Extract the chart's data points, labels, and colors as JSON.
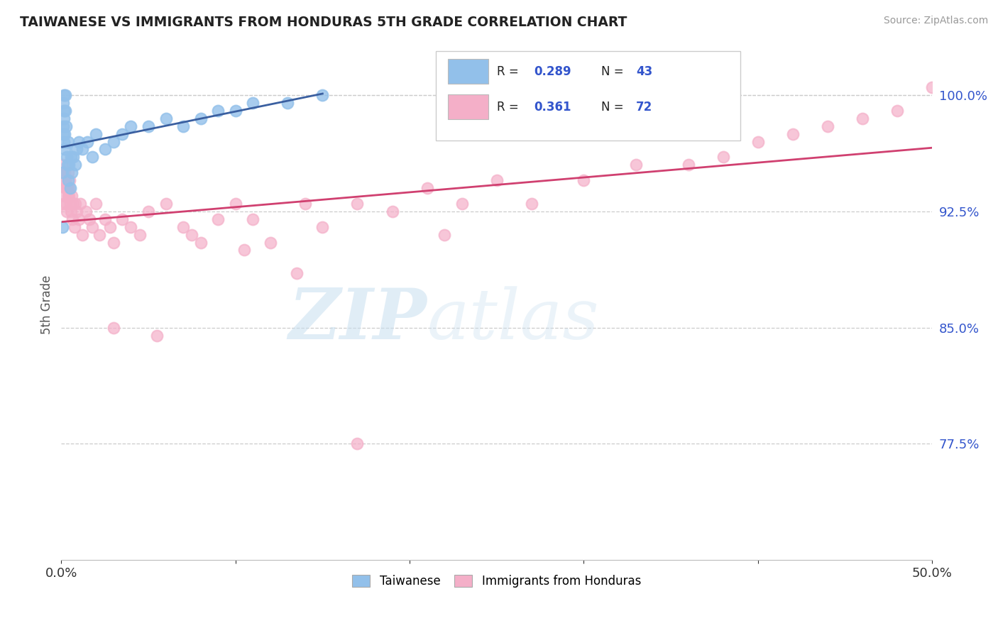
{
  "title": "TAIWANESE VS IMMIGRANTS FROM HONDURAS 5TH GRADE CORRELATION CHART",
  "source_text": "Source: ZipAtlas.com",
  "ylabel": "5th Grade",
  "xlim": [
    0.0,
    50.0
  ],
  "ylim": [
    70.0,
    103.0
  ],
  "yticks": [
    77.5,
    85.0,
    92.5,
    100.0
  ],
  "xticks": [
    0.0,
    10.0,
    20.0,
    30.0,
    40.0,
    50.0
  ],
  "xtick_labels": [
    "0.0%",
    "",
    "",
    "",
    "",
    "50.0%"
  ],
  "ytick_labels": [
    "77.5%",
    "85.0%",
    "92.5%",
    "100.0%"
  ],
  "legend_label1": "Taiwanese",
  "legend_label2": "Immigrants from Honduras",
  "R1": 0.289,
  "N1": 43,
  "R2": 0.361,
  "N2": 72,
  "color1": "#92c0ea",
  "color2": "#f4afc8",
  "line_color1": "#3a5fa0",
  "line_color2": "#d04070",
  "tw_x": [
    0.05,
    0.08,
    0.1,
    0.12,
    0.13,
    0.14,
    0.15,
    0.16,
    0.17,
    0.18,
    0.2,
    0.22,
    0.25,
    0.28,
    0.3,
    0.35,
    0.38,
    0.4,
    0.45,
    0.5,
    0.55,
    0.6,
    0.7,
    0.8,
    0.9,
    1.0,
    1.2,
    1.5,
    1.8,
    2.0,
    2.5,
    3.0,
    3.5,
    4.0,
    5.0,
    6.0,
    7.0,
    8.0,
    9.0,
    10.0,
    11.0,
    13.0,
    15.0
  ],
  "tw_y": [
    91.5,
    95.0,
    97.5,
    98.0,
    99.5,
    100.0,
    99.0,
    98.5,
    97.0,
    96.5,
    97.5,
    99.0,
    100.0,
    98.0,
    96.0,
    95.5,
    97.0,
    94.5,
    95.5,
    94.0,
    96.0,
    95.0,
    96.0,
    95.5,
    96.5,
    97.0,
    96.5,
    97.0,
    96.0,
    97.5,
    96.5,
    97.0,
    97.5,
    98.0,
    98.0,
    98.5,
    98.0,
    98.5,
    99.0,
    99.0,
    99.5,
    99.5,
    100.0
  ],
  "hon_x": [
    0.08,
    0.1,
    0.12,
    0.15,
    0.18,
    0.2,
    0.22,
    0.25,
    0.28,
    0.3,
    0.33,
    0.35,
    0.38,
    0.4,
    0.42,
    0.45,
    0.48,
    0.5,
    0.55,
    0.6,
    0.65,
    0.7,
    0.75,
    0.8,
    0.9,
    1.0,
    1.1,
    1.2,
    1.4,
    1.6,
    1.8,
    2.0,
    2.2,
    2.5,
    2.8,
    3.0,
    3.5,
    4.0,
    4.5,
    5.0,
    6.0,
    7.0,
    8.0,
    9.0,
    10.0,
    11.0,
    12.0,
    14.0,
    15.0,
    17.0,
    19.0,
    21.0,
    23.0,
    25.0,
    27.0,
    30.0,
    33.0,
    36.0,
    38.0,
    40.0,
    42.0,
    44.0,
    46.0,
    48.0,
    50.0,
    3.0,
    5.5,
    7.5,
    10.5,
    13.5,
    17.0,
    22.0
  ],
  "hon_y": [
    95.5,
    93.0,
    95.0,
    94.5,
    93.5,
    95.0,
    94.0,
    94.5,
    93.0,
    94.0,
    92.5,
    94.0,
    93.5,
    95.0,
    94.0,
    93.5,
    94.5,
    93.0,
    92.5,
    93.5,
    92.0,
    93.0,
    91.5,
    93.0,
    92.5,
    92.0,
    93.0,
    91.0,
    92.5,
    92.0,
    91.5,
    93.0,
    91.0,
    92.0,
    91.5,
    90.5,
    92.0,
    91.5,
    91.0,
    92.5,
    93.0,
    91.5,
    90.5,
    92.0,
    93.0,
    92.0,
    90.5,
    93.0,
    91.5,
    93.0,
    92.5,
    94.0,
    93.0,
    94.5,
    93.0,
    94.5,
    95.5,
    95.5,
    96.0,
    97.0,
    97.5,
    98.0,
    98.5,
    99.0,
    100.5,
    85.0,
    84.5,
    91.0,
    90.0,
    88.5,
    77.5,
    91.0
  ]
}
